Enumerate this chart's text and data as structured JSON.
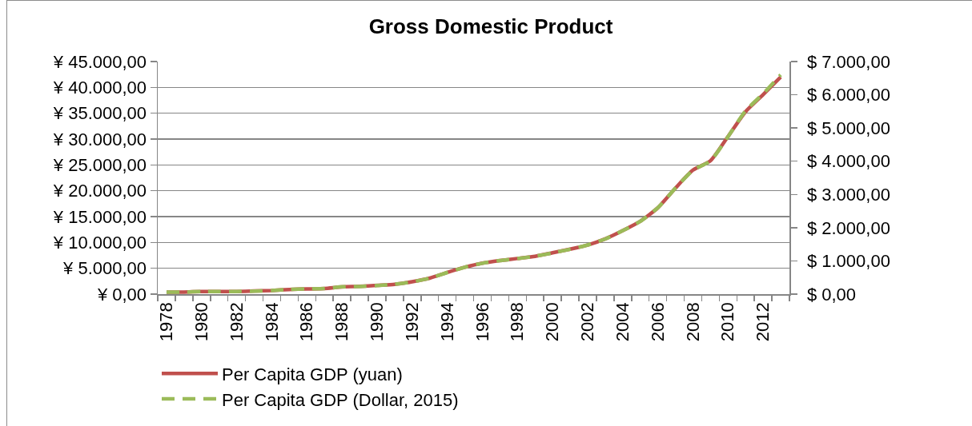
{
  "chart_data": {
    "type": "line",
    "title": "Gross Domestic Product",
    "categories": [
      "1978",
      null,
      "1980",
      null,
      "1982",
      null,
      "1984",
      null,
      "1986",
      null,
      "1988",
      null,
      "1990",
      null,
      "1992",
      null,
      "1994",
      null,
      "1996",
      null,
      "1998",
      null,
      "2000",
      null,
      "2002",
      null,
      "2004",
      null,
      "2006",
      null,
      "2008",
      null,
      "2010",
      null,
      "2012",
      null
    ],
    "series": [
      {
        "name": "Per Capita GDP (yuan)",
        "color": "#c0504d",
        "line_style": "solid",
        "values": [
          400,
          400,
          500,
          500,
          500,
          600,
          700,
          900,
          1000,
          1100,
          1400,
          1500,
          1700,
          1900,
          2400,
          3100,
          4200,
          5200,
          6000,
          6500,
          6900,
          7300,
          8000,
          8700,
          9500,
          10700,
          12300,
          14100,
          16700,
          20500,
          24000,
          25800,
          30500,
          35300,
          38600,
          42000
        ]
      },
      {
        "name": "Per Capita GDP (Dollar, 2015)",
        "color": "#9bbb59",
        "line_style": "dashed",
        "axis": "y2",
        "values": [
          60,
          60,
          80,
          80,
          80,
          90,
          110,
          140,
          160,
          170,
          220,
          230,
          260,
          300,
          370,
          480,
          650,
          810,
          930,
          1010,
          1070,
          1140,
          1240,
          1350,
          1480,
          1660,
          1910,
          2190,
          2600,
          3190,
          3730,
          4010,
          4740,
          5520,
          6030,
          6600
        ]
      }
    ],
    "ylim": [
      0,
      45000
    ],
    "yticks": [
      {
        "value": 0,
        "label": "¥ 0,00"
      },
      {
        "value": 5000,
        "label": "¥ 5.000,00"
      },
      {
        "value": 10000,
        "label": "¥ 10.000,00"
      },
      {
        "value": 15000,
        "label": "¥ 15.000,00"
      },
      {
        "value": 20000,
        "label": "¥ 20.000,00"
      },
      {
        "value": 25000,
        "label": "¥ 25.000,00"
      },
      {
        "value": 30000,
        "label": "¥ 30.000,00"
      },
      {
        "value": 35000,
        "label": "¥ 35.000,00"
      },
      {
        "value": 40000,
        "label": "¥ 40.000,00"
      },
      {
        "value": 45000,
        "label": "¥ 45.000,00"
      }
    ],
    "y2lim": [
      0,
      7000
    ],
    "y2ticks": [
      {
        "value": 0,
        "label": "$ 0,00"
      },
      {
        "value": 1000,
        "label": "$ 1.000,00"
      },
      {
        "value": 2000,
        "label": "$ 2.000,00"
      },
      {
        "value": 3000,
        "label": "$ 3.000,00"
      },
      {
        "value": 4000,
        "label": "$ 4.000,00"
      },
      {
        "value": 5000,
        "label": "$ 5.000,00"
      },
      {
        "value": 6000,
        "label": "$ 6.000,00"
      },
      {
        "value": 7000,
        "label": "$ 7.000,00"
      }
    ],
    "grid": "y",
    "legend": "bottom"
  }
}
